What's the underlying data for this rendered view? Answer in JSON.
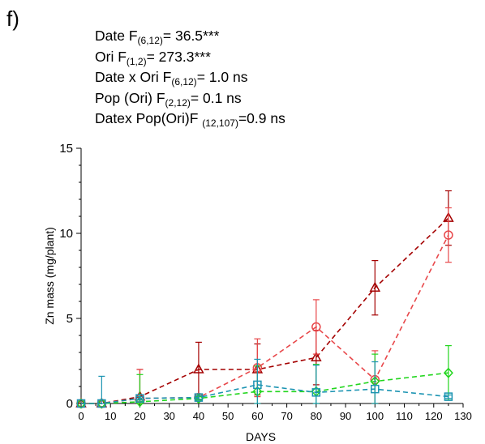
{
  "panel_label": "f)",
  "stats": [
    {
      "pre": "Date  F",
      "sub": "(6,12)",
      "post": "= 36.5***"
    },
    {
      "pre": "Ori F",
      "sub": "(1,2)",
      "post": "= 273.3***"
    },
    {
      "pre": "Date x Ori F",
      "sub": "(6,12)",
      "post": "= 1.0 ns"
    },
    {
      "pre": "Pop (Ori) F",
      "sub": "(2,12)",
      "post": "= 0.1 ns"
    },
    {
      "pre": "Datex Pop(Ori)F ",
      "sub": "(12,107)",
      "post": "=0.9 ns"
    }
  ],
  "chart_data": {
    "type": "line",
    "xlabel": "DAYS",
    "ylabel": "Zn mass (mg/plant)",
    "xlim": [
      0,
      130
    ],
    "ylim": [
      0,
      15
    ],
    "x_ticks": [
      0,
      10,
      20,
      30,
      40,
      50,
      60,
      70,
      80,
      90,
      100,
      110,
      120,
      130
    ],
    "y_ticks": [
      0,
      5,
      10,
      15
    ],
    "grid": false,
    "series": [
      {
        "marker": "triangle",
        "color": "#a40000",
        "x": [
          0,
          7,
          20,
          40,
          60,
          80,
          100,
          125
        ],
        "y": [
          0,
          0,
          0.4,
          2.0,
          2.0,
          2.7,
          6.8,
          10.9
        ],
        "err": [
          0,
          0,
          1.6,
          1.6,
          1.5,
          1.6,
          1.6,
          1.6
        ]
      },
      {
        "marker": "circle",
        "color": "#e8474a",
        "x": [
          0,
          7,
          20,
          40,
          60,
          80,
          100,
          125
        ],
        "y": [
          0,
          0,
          0.3,
          0.35,
          2.1,
          4.5,
          1.4,
          9.9
        ],
        "err": [
          0,
          0,
          1.7,
          0.1,
          1.7,
          1.6,
          1.7,
          1.6
        ]
      },
      {
        "marker": "diamond",
        "color": "#22d61e",
        "x": [
          0,
          7,
          20,
          40,
          60,
          80,
          100,
          125
        ],
        "y": [
          0,
          0,
          0.1,
          0.3,
          0.7,
          0.7,
          1.3,
          1.8
        ],
        "err": [
          0,
          0,
          1.6,
          0.1,
          1.5,
          1.6,
          1.6,
          1.6
        ]
      },
      {
        "marker": "square",
        "color": "#1c94b2",
        "x": [
          0,
          7,
          20,
          40,
          60,
          80,
          100,
          125
        ],
        "y": [
          0,
          0,
          0.3,
          0.35,
          1.1,
          0.65,
          0.85,
          0.4
        ],
        "err": [
          0,
          1.6,
          0.1,
          0.1,
          1.5,
          1.6,
          1.6,
          0.1
        ]
      }
    ]
  }
}
